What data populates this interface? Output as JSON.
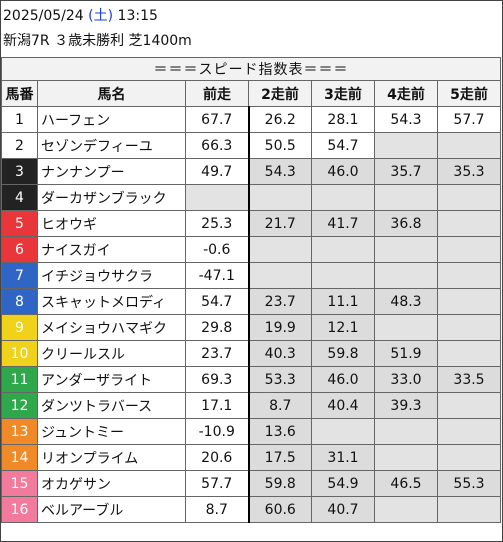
{
  "header": {
    "date": "2025/05/24",
    "weekday": "(土)",
    "time": "13:15",
    "race": "新潟7R ３歳未勝利 芝1400m"
  },
  "table": {
    "banner": "＝＝＝スピード指数表＝＝＝",
    "columns": [
      "馬番",
      "馬名",
      "前走",
      "2走前",
      "3走前",
      "4走前",
      "5走前"
    ],
    "rows": [
      {
        "num": "1",
        "name": "ハーフェン",
        "v": [
          "67.7",
          "26.2",
          "28.1",
          "54.3",
          "57.7"
        ],
        "bg": "#ffffff",
        "fg": "#111111"
      },
      {
        "num": "2",
        "name": "セゾンデフィーユ",
        "v": [
          "66.3",
          "50.5",
          "54.7",
          "",
          ""
        ],
        "bg": "#ffffff",
        "fg": "#111111"
      },
      {
        "num": "3",
        "name": "ナンナンプー",
        "v": [
          "49.7",
          "54.3",
          "46.0",
          "35.7",
          "35.3"
        ],
        "bg": "#222222",
        "fg": "#ffffff"
      },
      {
        "num": "4",
        "name": "ダーカザンブラック",
        "v": [
          "",
          "",
          "",
          "",
          ""
        ],
        "bg": "#222222",
        "fg": "#ffffff"
      },
      {
        "num": "5",
        "name": "ヒオウギ",
        "v": [
          "25.3",
          "21.7",
          "41.7",
          "36.8",
          ""
        ],
        "bg": "#e8363a",
        "fg": "#ffffff"
      },
      {
        "num": "6",
        "name": "ナイスガイ",
        "v": [
          "-0.6",
          "",
          "",
          "",
          ""
        ],
        "bg": "#e8363a",
        "fg": "#ffffff"
      },
      {
        "num": "7",
        "name": "イチジョウサクラ",
        "v": [
          "-47.1",
          "",
          "",
          "",
          ""
        ],
        "bg": "#2f66c6",
        "fg": "#ffffff"
      },
      {
        "num": "8",
        "name": "スキャットメロディ",
        "v": [
          "54.7",
          "23.7",
          "11.1",
          "48.3",
          ""
        ],
        "bg": "#2f66c6",
        "fg": "#ffffff"
      },
      {
        "num": "9",
        "name": "メイショウハマギク",
        "v": [
          "29.8",
          "19.9",
          "12.1",
          "",
          ""
        ],
        "bg": "#f1d21a",
        "fg": "#ffffff"
      },
      {
        "num": "10",
        "name": "クリールスル",
        "v": [
          "23.7",
          "40.3",
          "59.8",
          "51.9",
          ""
        ],
        "bg": "#f1d21a",
        "fg": "#ffffff"
      },
      {
        "num": "11",
        "name": "アンダーザライト",
        "v": [
          "69.3",
          "53.3",
          "46.0",
          "33.0",
          "33.5"
        ],
        "bg": "#2ea84a",
        "fg": "#ffffff"
      },
      {
        "num": "12",
        "name": "ダンツトラバース",
        "v": [
          "17.1",
          "8.7",
          "40.4",
          "39.3",
          ""
        ],
        "bg": "#2ea84a",
        "fg": "#ffffff"
      },
      {
        "num": "13",
        "name": "ジュントミー",
        "v": [
          "-10.9",
          "13.6",
          "",
          "",
          ""
        ],
        "bg": "#f08a28",
        "fg": "#ffffff"
      },
      {
        "num": "14",
        "name": "リオンプライム",
        "v": [
          "20.6",
          "17.5",
          "31.1",
          "",
          ""
        ],
        "bg": "#f08a28",
        "fg": "#ffffff"
      },
      {
        "num": "15",
        "name": "オカゲサン",
        "v": [
          "57.7",
          "59.8",
          "54.9",
          "46.5",
          "55.3"
        ],
        "bg": "#f27a9c",
        "fg": "#ffffff"
      },
      {
        "num": "16",
        "name": "ベルアーブル",
        "v": [
          "8.7",
          "60.6",
          "40.7",
          "",
          ""
        ],
        "bg": "#f27a9c",
        "fg": "#ffffff"
      }
    ]
  }
}
